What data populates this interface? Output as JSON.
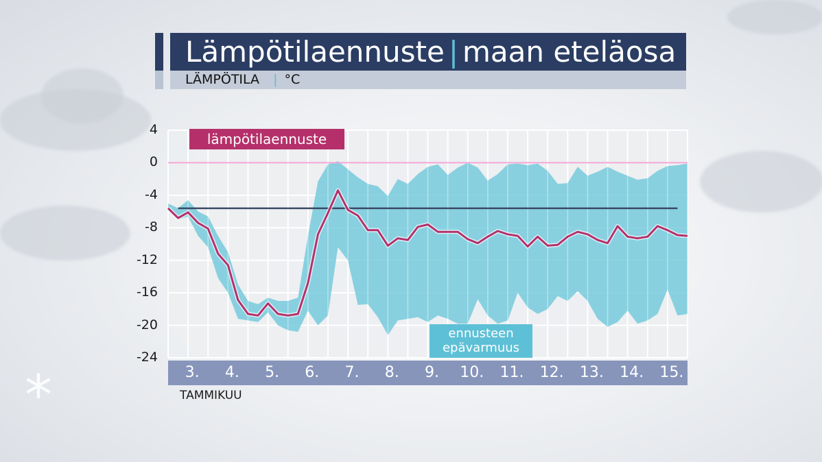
{
  "header": {
    "title_main": "Lämpötilaennuste",
    "title_sep": "|",
    "title_region": "maan eteläosa",
    "subtitle": "LÄMPÖTILA",
    "unit_sep": "|",
    "unit": "°C"
  },
  "colors": {
    "title_bg": "#2b3d63",
    "forecast": "#b5306b",
    "uncertainty": "#5ec0d6",
    "date_bar": "#8795bb",
    "mean_line": "#3a4a66"
  },
  "chart_data": {
    "type": "line",
    "title": "Lämpötilaennuste | maan eteläosa",
    "ylabel": "LÄMPÖTILA | °C",
    "xlabel": "TAMMIKUU",
    "ylim": [
      -24,
      4
    ],
    "yticks": [
      "4",
      "0",
      "-4",
      "-8",
      "-12",
      "-16",
      "-20",
      "-24"
    ],
    "xlim": [
      2.5,
      15.5
    ],
    "xticks": [
      "3.",
      "4.",
      "5.",
      "6.",
      "7.",
      "8.",
      "9.",
      "10.",
      "11.",
      "12.",
      "13.",
      "14.",
      "15."
    ],
    "grid": true,
    "zero_line": 0,
    "mean_line": -5.6,
    "labels": {
      "forecast": "lämpötilaennuste",
      "uncertainty": "ennusteen\nepävarmuus"
    },
    "forecast": {
      "x": [
        2.5,
        2.75,
        3.0,
        3.25,
        3.5,
        3.75,
        4.0,
        4.25,
        4.5,
        4.75,
        5.0,
        5.25,
        5.5,
        5.75,
        6.0,
        6.25,
        6.5,
        6.75,
        7.0,
        7.25,
        7.5,
        7.75,
        8.0,
        8.25,
        8.5,
        8.75,
        9.0,
        9.25,
        9.5,
        9.75,
        10.0,
        10.25,
        10.5,
        10.75,
        11.0,
        11.25,
        11.5,
        11.75,
        12.0,
        12.25,
        12.5,
        12.75,
        13.0,
        13.25,
        13.5,
        13.75,
        14.0,
        14.25,
        14.5,
        14.75,
        15.0,
        15.25,
        15.5
      ],
      "y": [
        -5.6,
        -6.8,
        -6.1,
        -7.4,
        -8.1,
        -11.2,
        -12.6,
        -16.9,
        -18.6,
        -18.8,
        -17.3,
        -18.6,
        -18.8,
        -18.6,
        -14.8,
        -8.8,
        -6.2,
        -3.4,
        -5.8,
        -6.5,
        -8.3,
        -8.3,
        -10.2,
        -9.3,
        -9.5,
        -7.9,
        -7.6,
        -8.5,
        -8.5,
        -8.5,
        -9.4,
        -9.9,
        -9.1,
        -8.4,
        -8.8,
        -9.0,
        -10.3,
        -9.1,
        -10.2,
        -10.1,
        -9.1,
        -8.5,
        -8.8,
        -9.5,
        -9.9,
        -7.8,
        -9.1,
        -9.3,
        -9.1,
        -7.8,
        -8.3,
        -8.9,
        -9.0
      ]
    },
    "uncertainty_band": {
      "x": [
        2.5,
        2.75,
        3.0,
        3.25,
        3.5,
        3.75,
        4.0,
        4.25,
        4.5,
        4.75,
        5.0,
        5.25,
        5.5,
        5.75,
        6.0,
        6.25,
        6.5,
        6.75,
        7.0,
        7.25,
        7.5,
        7.75,
        8.0,
        8.25,
        8.5,
        8.75,
        9.0,
        9.25,
        9.5,
        9.75,
        10.0,
        10.25,
        10.5,
        10.75,
        11.0,
        11.25,
        11.5,
        11.75,
        12.0,
        12.25,
        12.5,
        12.75,
        13.0,
        13.25,
        13.5,
        13.75,
        14.0,
        14.25,
        14.5,
        14.75,
        15.0,
        15.25,
        15.5
      ],
      "upper": [
        -5.0,
        -5.6,
        -4.6,
        -6.0,
        -6.6,
        -9.0,
        -11.0,
        -15.0,
        -17.0,
        -17.4,
        -16.6,
        -17.0,
        -17.0,
        -16.6,
        -9.0,
        -2.3,
        -0.2,
        0.2,
        -0.8,
        -1.8,
        -2.6,
        -2.9,
        -4.1,
        -2.0,
        -2.6,
        -1.4,
        -0.5,
        -0.2,
        -1.5,
        -0.6,
        0.0,
        -0.6,
        -2.2,
        -1.4,
        -0.2,
        -0.1,
        -0.3,
        -0.1,
        -1.0,
        -2.6,
        -2.5,
        -0.5,
        -1.6,
        -1.1,
        -0.5,
        -1.1,
        -1.6,
        -2.1,
        -1.9,
        -1.0,
        -0.4,
        -0.3,
        -0.1
      ],
      "lower": [
        -5.8,
        -7.0,
        -6.6,
        -9.0,
        -10.4,
        -14.2,
        -16.0,
        -19.2,
        -19.4,
        -19.6,
        -18.4,
        -20.0,
        -20.6,
        -20.8,
        -18.2,
        -20.0,
        -18.8,
        -10.4,
        -12.0,
        -17.5,
        -17.4,
        -19.0,
        -21.2,
        -19.4,
        -19.2,
        -19.0,
        -19.6,
        -18.8,
        -19.2,
        -19.8,
        -19.8,
        -16.8,
        -18.8,
        -19.8,
        -19.4,
        -16.0,
        -17.8,
        -18.6,
        -18.0,
        -16.4,
        -17.0,
        -15.8,
        -17.0,
        -19.2,
        -20.2,
        -19.6,
        -18.2,
        -19.8,
        -19.4,
        -18.6,
        -15.6,
        -18.8,
        -18.6
      ]
    }
  }
}
